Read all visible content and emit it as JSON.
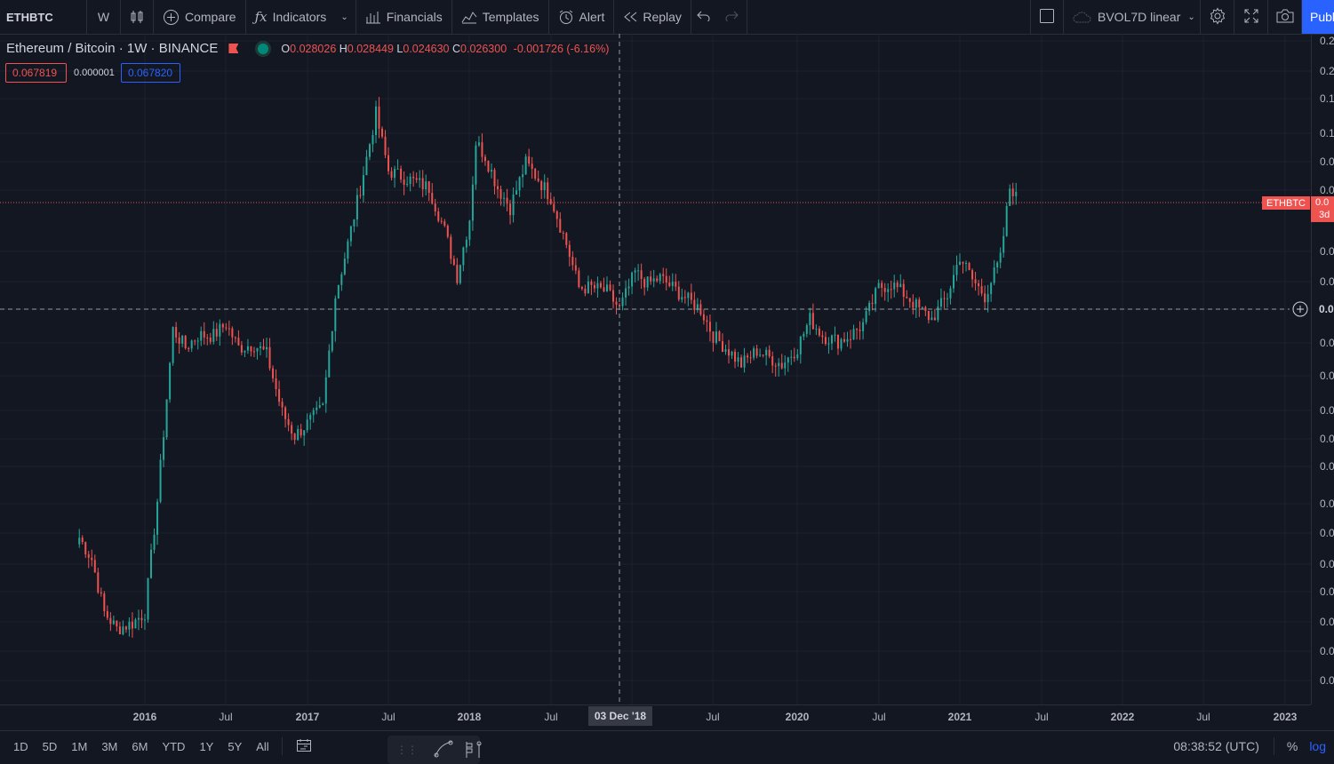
{
  "toolbar": {
    "symbol": "ETHBTC",
    "interval": "W",
    "compare": "Compare",
    "indicators": "Indicators",
    "financials": "Financials",
    "templates": "Templates",
    "alert": "Alert",
    "replay": "Replay",
    "layout_name": "BVOL7D linear",
    "publish": "Publish"
  },
  "legend": {
    "title": "Ethereum / Bitcoin · 1W · BINANCE",
    "open_label": "O",
    "open": "0.028026",
    "high_label": "H",
    "high": "0.028449",
    "low_label": "L",
    "low": "0.024630",
    "close_label": "C",
    "close": "0.026300",
    "change": "-0.001726 (-6.16%)",
    "sell_price": "0.067819",
    "spread": "0.000001",
    "buy_price": "0.067820"
  },
  "price_scale": {
    "labels": [
      "0.2",
      "0.2",
      "0.1",
      "0.1",
      "0.0",
      "0.0",
      "0.0",
      "0.0",
      "0.0",
      "0.0",
      "0.0",
      "0.0",
      "0.0",
      "0.0",
      "0.0",
      "0.0",
      "0.0",
      "0.0",
      "0.0",
      "0.0",
      "0.0",
      "0.0",
      "0.0",
      "0.0"
    ],
    "cursor_label": "0.0",
    "symbol_tag": "ETHBTC",
    "last_price_label": "0.0",
    "countdown": "3d"
  },
  "time_axis": {
    "labels": [
      "2016",
      "Jul",
      "2017",
      "Jul",
      "2018",
      "Jul",
      "Jul",
      "2020",
      "Jul",
      "2021",
      "Jul",
      "2022",
      "Jul",
      "2023"
    ],
    "cursor_label": "03 Dec '18"
  },
  "bottom": {
    "ranges": [
      "1D",
      "5D",
      "1M",
      "3M",
      "6M",
      "YTD",
      "1Y",
      "5Y",
      "All"
    ],
    "clock": "08:38:52 (UTC)",
    "percent": "%",
    "log": "log"
  },
  "colors": {
    "background": "#131722",
    "up": "#26a69a",
    "down": "#ef5350",
    "accent": "#2962ff"
  },
  "chart_data": {
    "type": "candlestick",
    "symbol": "ETHBTC",
    "timeframe": "1W",
    "scale": "log",
    "x_range": [
      "2015-08",
      "2023-03"
    ],
    "series_close": [
      [
        "2015-08-10",
        0.0045
      ],
      [
        "2015-09-07",
        0.0038
      ],
      [
        "2015-10-05",
        0.0025
      ],
      [
        "2015-11-02",
        0.0022
      ],
      [
        "2015-12-07",
        0.0023
      ],
      [
        "2016-01-04",
        0.0025
      ],
      [
        "2016-02-01",
        0.006
      ],
      [
        "2016-03-07",
        0.023
      ],
      [
        "2016-04-04",
        0.02
      ],
      [
        "2016-05-02",
        0.022
      ],
      [
        "2016-06-06",
        0.022
      ],
      [
        "2016-07-04",
        0.024
      ],
      [
        "2016-08-01",
        0.02
      ],
      [
        "2016-09-05",
        0.0205
      ],
      [
        "2016-10-03",
        0.019
      ],
      [
        "2016-11-07",
        0.012
      ],
      [
        "2016-12-05",
        0.01
      ],
      [
        "2017-01-02",
        0.011
      ],
      [
        "2017-02-06",
        0.0125
      ],
      [
        "2017-03-06",
        0.03
      ],
      [
        "2017-04-03",
        0.045
      ],
      [
        "2017-05-01",
        0.07
      ],
      [
        "2017-06-05",
        0.125
      ],
      [
        "2017-07-03",
        0.08
      ],
      [
        "2017-08-07",
        0.076
      ],
      [
        "2017-09-04",
        0.073
      ],
      [
        "2017-10-02",
        0.07
      ],
      [
        "2017-11-06",
        0.05
      ],
      [
        "2017-12-04",
        0.035
      ],
      [
        "2018-01-01",
        0.055
      ],
      [
        "2018-01-15",
        0.1
      ],
      [
        "2018-02-05",
        0.09
      ],
      [
        "2018-03-05",
        0.07
      ],
      [
        "2018-04-02",
        0.06
      ],
      [
        "2018-05-07",
        0.085
      ],
      [
        "2018-06-04",
        0.075
      ],
      [
        "2018-07-02",
        0.065
      ],
      [
        "2018-08-06",
        0.045
      ],
      [
        "2018-09-03",
        0.032
      ],
      [
        "2018-10-01",
        0.032
      ],
      [
        "2018-11-05",
        0.031
      ],
      [
        "2018-12-03",
        0.027
      ],
      [
        "2019-01-07",
        0.036
      ],
      [
        "2019-02-04",
        0.033
      ],
      [
        "2019-03-04",
        0.0345
      ],
      [
        "2019-04-01",
        0.032
      ],
      [
        "2019-05-06",
        0.029
      ],
      [
        "2019-06-03",
        0.027
      ],
      [
        "2019-07-01",
        0.022
      ],
      [
        "2019-08-05",
        0.0195
      ],
      [
        "2019-09-02",
        0.0175
      ],
      [
        "2019-10-07",
        0.0195
      ],
      [
        "2019-11-04",
        0.0185
      ],
      [
        "2019-12-02",
        0.0175
      ],
      [
        "2020-01-06",
        0.02
      ],
      [
        "2020-02-03",
        0.025
      ],
      [
        "2020-03-02",
        0.022
      ],
      [
        "2020-04-06",
        0.021
      ],
      [
        "2020-05-04",
        0.022
      ],
      [
        "2020-06-01",
        0.024
      ],
      [
        "2020-07-06",
        0.032
      ],
      [
        "2020-08-03",
        0.033
      ],
      [
        "2020-09-07",
        0.03
      ],
      [
        "2020-10-05",
        0.027
      ],
      [
        "2020-11-02",
        0.025
      ],
      [
        "2020-12-07",
        0.03
      ],
      [
        "2021-01-04",
        0.041
      ],
      [
        "2021-02-01",
        0.034
      ],
      [
        "2021-03-01",
        0.03
      ],
      [
        "2021-04-05",
        0.04
      ],
      [
        "2021-04-26",
        0.07
      ],
      [
        "2021-05-10",
        0.0678
      ]
    ],
    "last_price": 0.067819,
    "crosshair_price": 0.027
  }
}
